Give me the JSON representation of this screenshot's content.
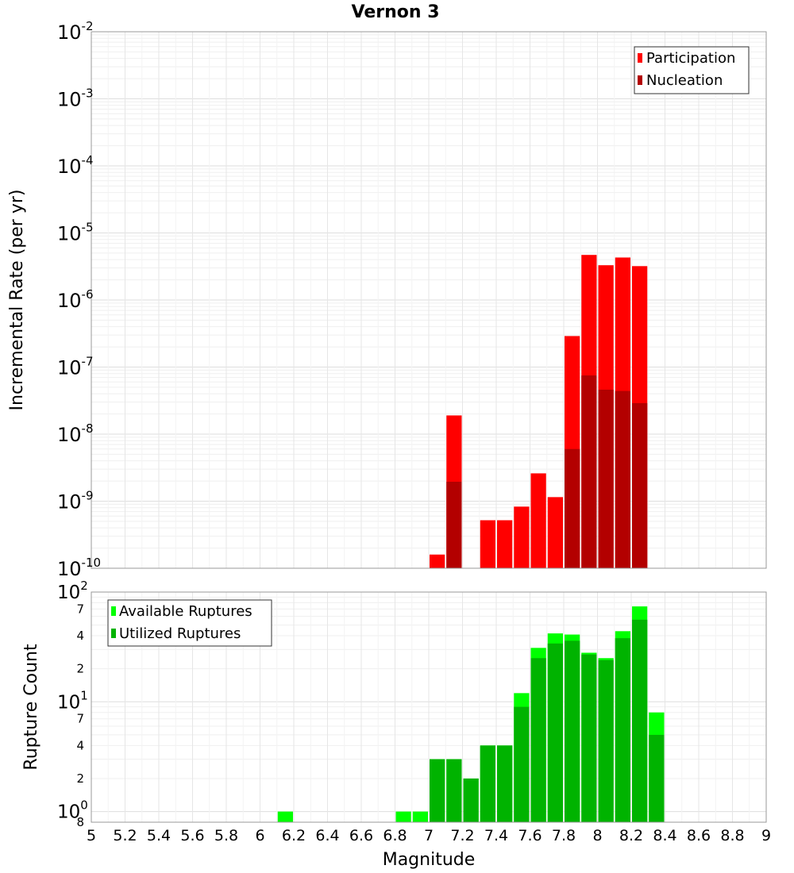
{
  "chart_data": [
    {
      "type": "bar",
      "title": "Vernon 3",
      "xlabel": "",
      "ylabel": "Incremental Rate (per yr)",
      "yscale": "log",
      "ylim": [
        1e-10,
        0.01
      ],
      "ytick_labels": [
        {
          "base": "10",
          "exp": "-10"
        },
        {
          "base": "10",
          "exp": "-9"
        },
        {
          "base": "10",
          "exp": "-8"
        },
        {
          "base": "10",
          "exp": "-7"
        },
        {
          "base": "10",
          "exp": "-6"
        },
        {
          "base": "10",
          "exp": "-5"
        },
        {
          "base": "10",
          "exp": "-4"
        },
        {
          "base": "10",
          "exp": "-3"
        },
        {
          "base": "10",
          "exp": "-2"
        }
      ],
      "grid": true,
      "legend_position": "top-right",
      "series": [
        {
          "name": "Participation",
          "color": "#ff0000",
          "points": [
            {
              "x": 7.05,
              "y": 1.6e-10
            },
            {
              "x": 7.15,
              "y": 1.9e-08
            },
            {
              "x": 7.35,
              "y": 5.2e-10
            },
            {
              "x": 7.45,
              "y": 5.2e-10
            },
            {
              "x": 7.55,
              "y": 8.3e-10
            },
            {
              "x": 7.65,
              "y": 2.6e-09
            },
            {
              "x": 7.75,
              "y": 1.15e-09
            },
            {
              "x": 7.85,
              "y": 2.9e-07
            },
            {
              "x": 7.95,
              "y": 4.7e-06
            },
            {
              "x": 8.05,
              "y": 3.3e-06
            },
            {
              "x": 8.15,
              "y": 4.3e-06
            },
            {
              "x": 8.25,
              "y": 3.2e-06
            }
          ]
        },
        {
          "name": "Nucleation",
          "color": "#b30000",
          "points": [
            {
              "x": 7.15,
              "y": 1.95e-09
            },
            {
              "x": 7.85,
              "y": 6e-09
            },
            {
              "x": 7.95,
              "y": 7.5e-08
            },
            {
              "x": 8.05,
              "y": 4.6e-08
            },
            {
              "x": 8.15,
              "y": 4.4e-08
            },
            {
              "x": 8.25,
              "y": 2.9e-08
            }
          ]
        }
      ]
    },
    {
      "type": "bar",
      "title": "",
      "xlabel": "Magnitude",
      "ylabel": "Rupture Count",
      "yscale": "log",
      "ylim": [
        0.8,
        100
      ],
      "ytick_labels": [
        {
          "base": "10",
          "exp": "0"
        },
        {
          "base": "10",
          "exp": "1"
        },
        {
          "base": "10",
          "exp": "2"
        }
      ],
      "minor_tick_labels": [
        {
          "label": "8",
          "value": 0.8
        },
        {
          "label": "2",
          "value": 2
        },
        {
          "label": "4",
          "value": 4
        },
        {
          "label": "7",
          "value": 7
        },
        {
          "label": "2",
          "value": 20
        },
        {
          "label": "4",
          "value": 40
        },
        {
          "label": "7",
          "value": 70
        }
      ],
      "xlim": [
        5,
        9
      ],
      "xtick_labels": [
        "5",
        "5.2",
        "5.4",
        "5.6",
        "5.8",
        "6",
        "6.2",
        "6.4",
        "6.6",
        "6.8",
        "7",
        "7.2",
        "7.4",
        "7.6",
        "7.8",
        "8",
        "8.2",
        "8.4",
        "8.6",
        "8.8",
        "9"
      ],
      "grid": true,
      "legend_position": "top-left",
      "series": [
        {
          "name": "Available Ruptures",
          "color": "#00ff00",
          "points": [
            {
              "x": 6.15,
              "y": 1
            },
            {
              "x": 6.85,
              "y": 1
            },
            {
              "x": 6.95,
              "y": 1
            },
            {
              "x": 7.05,
              "y": 3
            },
            {
              "x": 7.15,
              "y": 3
            },
            {
              "x": 7.25,
              "y": 2
            },
            {
              "x": 7.35,
              "y": 4
            },
            {
              "x": 7.45,
              "y": 4
            },
            {
              "x": 7.55,
              "y": 12
            },
            {
              "x": 7.65,
              "y": 31
            },
            {
              "x": 7.75,
              "y": 42
            },
            {
              "x": 7.85,
              "y": 41
            },
            {
              "x": 7.95,
              "y": 28
            },
            {
              "x": 8.05,
              "y": 25
            },
            {
              "x": 8.15,
              "y": 44
            },
            {
              "x": 8.25,
              "y": 74
            },
            {
              "x": 8.35,
              "y": 8
            }
          ]
        },
        {
          "name": "Utilized Ruptures",
          "color": "#00b300",
          "points": [
            {
              "x": 7.05,
              "y": 3
            },
            {
              "x": 7.15,
              "y": 3
            },
            {
              "x": 7.25,
              "y": 2
            },
            {
              "x": 7.35,
              "y": 4
            },
            {
              "x": 7.45,
              "y": 4
            },
            {
              "x": 7.55,
              "y": 9
            },
            {
              "x": 7.65,
              "y": 25
            },
            {
              "x": 7.75,
              "y": 34
            },
            {
              "x": 7.85,
              "y": 36
            },
            {
              "x": 7.95,
              "y": 27
            },
            {
              "x": 8.05,
              "y": 24
            },
            {
              "x": 8.15,
              "y": 38
            },
            {
              "x": 8.25,
              "y": 56
            },
            {
              "x": 8.35,
              "y": 5
            }
          ]
        }
      ]
    }
  ]
}
